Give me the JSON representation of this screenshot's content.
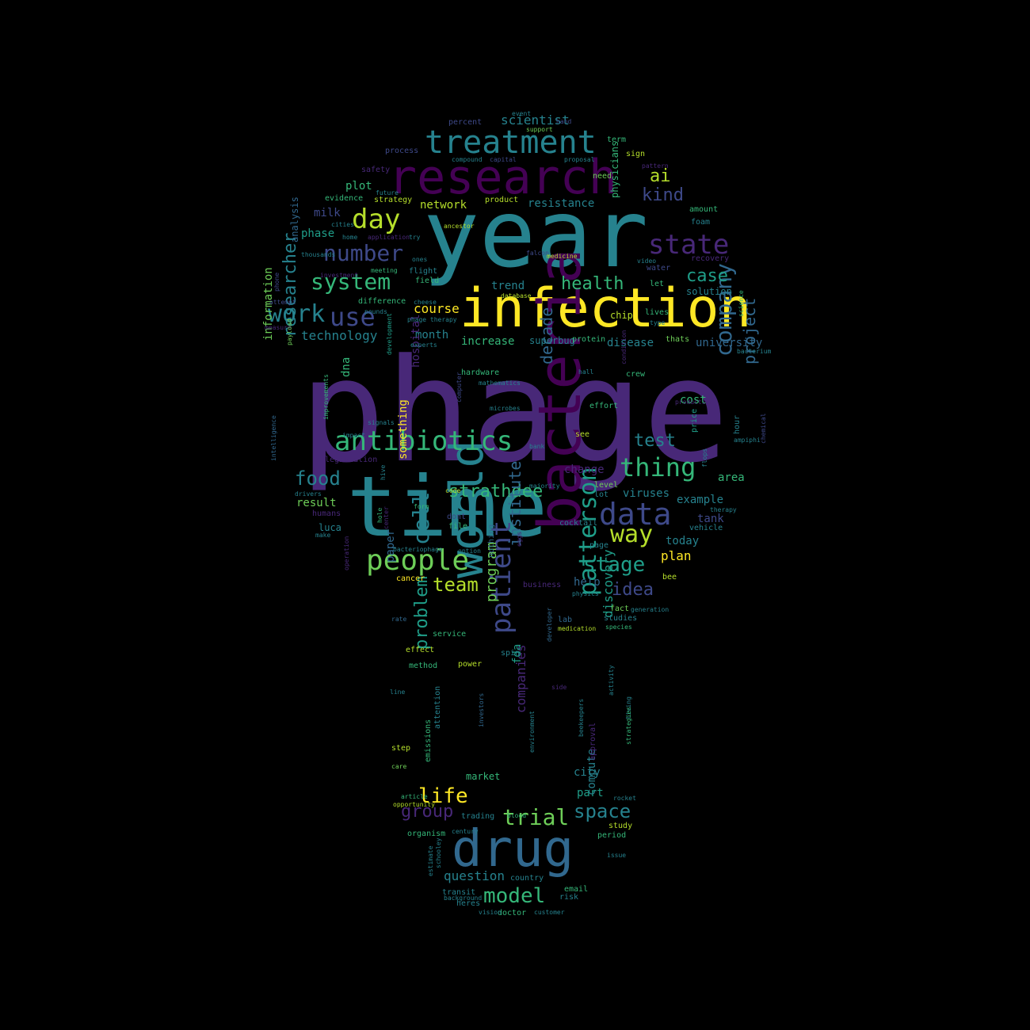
{
  "palette": {
    "background": "#000000",
    "viridis": [
      "#440154",
      "#482878",
      "#3e4989",
      "#31688e",
      "#26828e",
      "#1f9e89",
      "#35b779",
      "#6ece58",
      "#b5de2b",
      "#fde725"
    ]
  },
  "words": [
    {
      "text": "phage",
      "color": "#482878"
    },
    {
      "text": "time",
      "color": "#26828e"
    },
    {
      "text": "year",
      "color": "#26828e"
    },
    {
      "text": "infection",
      "color": "#fde725"
    },
    {
      "text": "research",
      "color": "#440154"
    },
    {
      "text": "bacteria",
      "color": "#440154"
    },
    {
      "text": "drug",
      "color": "#31688e"
    },
    {
      "text": "world",
      "color": "#26828e"
    },
    {
      "text": "treatment",
      "color": "#26828e"
    },
    {
      "text": "antibiotics",
      "color": "#35b779"
    },
    {
      "text": "people",
      "color": "#6ece58"
    },
    {
      "text": "patient",
      "color": "#3e4989"
    },
    {
      "text": "data",
      "color": "#3e4989"
    },
    {
      "text": "thing",
      "color": "#35b779"
    },
    {
      "text": "patterson",
      "color": "#1f9e89"
    },
    {
      "text": "company",
      "color": "#31688e"
    },
    {
      "text": "number",
      "color": "#3e4989"
    },
    {
      "text": "system",
      "color": "#35b779"
    },
    {
      "text": "state",
      "color": "#482878"
    },
    {
      "text": "day",
      "color": "#b5de2b"
    },
    {
      "text": "use",
      "color": "#3e4989"
    },
    {
      "text": "work",
      "color": "#26828e"
    },
    {
      "text": "cell",
      "color": "#26828e"
    },
    {
      "text": "way",
      "color": "#b5de2b"
    },
    {
      "text": "stage",
      "color": "#1f9e89"
    },
    {
      "text": "model",
      "color": "#35b779"
    },
    {
      "text": "trial",
      "color": "#6ece58"
    },
    {
      "text": "life",
      "color": "#fde725"
    },
    {
      "text": "team",
      "color": "#b5de2b"
    },
    {
      "text": "space",
      "color": "#26828e"
    },
    {
      "text": "strathdee",
      "color": "#35b779"
    },
    {
      "text": "problem",
      "color": "#1f9e89"
    },
    {
      "text": "test",
      "color": "#26828e"
    },
    {
      "text": "food",
      "color": "#26828e"
    },
    {
      "text": "researcher",
      "color": "#26828e"
    },
    {
      "text": "case",
      "color": "#1f9e89"
    },
    {
      "text": "kind",
      "color": "#3e4989"
    },
    {
      "text": "ai",
      "color": "#b5de2b"
    },
    {
      "text": "idea",
      "color": "#3e4989"
    },
    {
      "text": "group",
      "color": "#482878"
    },
    {
      "text": "health",
      "color": "#35b779"
    },
    {
      "text": "project",
      "color": "#31688e"
    },
    {
      "text": "institute",
      "color": "#31688e"
    },
    {
      "text": "program",
      "color": "#6ece58"
    },
    {
      "text": "decade",
      "color": "#31688e"
    },
    {
      "text": "question",
      "color": "#26828e"
    },
    {
      "text": "discovery",
      "color": "#1f9e89"
    },
    {
      "text": "companies",
      "color": "#482878"
    },
    {
      "text": "technology",
      "color": "#26828e"
    },
    {
      "text": "scientist",
      "color": "#26828e"
    },
    {
      "text": "resistance",
      "color": "#26828e"
    },
    {
      "text": "plot",
      "color": "#35b779"
    },
    {
      "text": "phase",
      "color": "#1f9e89"
    },
    {
      "text": "milk",
      "color": "#3e4989"
    },
    {
      "text": "course",
      "color": "#fde725"
    },
    {
      "text": "month",
      "color": "#26828e"
    },
    {
      "text": "increase",
      "color": "#35b779"
    },
    {
      "text": "university",
      "color": "#31688e"
    },
    {
      "text": "disease",
      "color": "#26828e"
    },
    {
      "text": "trend",
      "color": "#26828e"
    },
    {
      "text": "network",
      "color": "#b5de2b"
    },
    {
      "text": "information",
      "color": "#6ece58"
    },
    {
      "text": "analysis",
      "color": "#31688e"
    },
    {
      "text": "physicians",
      "color": "#35b779"
    },
    {
      "text": "cost",
      "color": "#35b779"
    },
    {
      "text": "example",
      "color": "#26828e"
    },
    {
      "text": "area",
      "color": "#35b779"
    },
    {
      "text": "today",
      "color": "#26828e"
    },
    {
      "text": "plan",
      "color": "#fde725"
    },
    {
      "text": "help",
      "color": "#31688e"
    },
    {
      "text": "result",
      "color": "#6ece58"
    },
    {
      "text": "luca",
      "color": "#26828e"
    },
    {
      "text": "hospital",
      "color": "#482878"
    },
    {
      "text": "dna",
      "color": "#35b779"
    },
    {
      "text": "viruses",
      "color": "#26828e"
    },
    {
      "text": "tank",
      "color": "#3e4989"
    },
    {
      "text": "change",
      "color": "#482878"
    },
    {
      "text": "city",
      "color": "#26828e"
    },
    {
      "text": "part",
      "color": "#1f9e89"
    },
    {
      "text": "market",
      "color": "#35b779"
    },
    {
      "text": "compute",
      "color": "#26828e"
    },
    {
      "text": "paper",
      "color": "#31688e"
    },
    {
      "text": "fda",
      "color": "#1f9e89"
    },
    {
      "text": "something",
      "color": "#fde725"
    },
    {
      "text": "superbug",
      "color": "#26828e"
    },
    {
      "text": "protein",
      "color": "#35b779"
    },
    {
      "text": "chip",
      "color": "#b5de2b"
    },
    {
      "text": "foam",
      "color": "#26828e"
    },
    {
      "text": "water",
      "color": "#3e4989"
    },
    {
      "text": "solution",
      "color": "#26828e"
    },
    {
      "text": "recovery",
      "color": "#482878"
    },
    {
      "text": "amount",
      "color": "#35b779"
    },
    {
      "text": "crew",
      "color": "#35b779"
    },
    {
      "text": "thats",
      "color": "#6ece58"
    },
    {
      "text": "lives",
      "color": "#35b779"
    },
    {
      "text": "let",
      "color": "#35b779"
    },
    {
      "text": "studies",
      "color": "#26828e"
    },
    {
      "text": "lab",
      "color": "#31688e"
    },
    {
      "text": "fact",
      "color": "#6ece58"
    },
    {
      "text": "species",
      "color": "#35b779"
    },
    {
      "text": "bee",
      "color": "#b5de2b"
    },
    {
      "text": "service",
      "color": "#35b779"
    },
    {
      "text": "effect",
      "color": "#b5de2b"
    },
    {
      "text": "method",
      "color": "#35b779"
    },
    {
      "text": "power",
      "color": "#b5de2b"
    },
    {
      "text": "spin",
      "color": "#26828e"
    },
    {
      "text": "rate",
      "color": "#31688e"
    },
    {
      "text": "cancer",
      "color": "#fde725"
    },
    {
      "text": "business",
      "color": "#482878"
    },
    {
      "text": "nothing",
      "color": "#31688e"
    },
    {
      "text": "developer",
      "color": "#31688e"
    },
    {
      "text": "page",
      "color": "#26828e"
    },
    {
      "text": "cocktail",
      "color": "#26828e"
    },
    {
      "text": "level",
      "color": "#6ece58"
    },
    {
      "text": "lot",
      "color": "#26828e"
    },
    {
      "text": "vehicle",
      "color": "#26828e"
    },
    {
      "text": "price",
      "color": "#1f9e89"
    },
    {
      "text": "hour",
      "color": "#26828e"
    },
    {
      "text": "file",
      "color": "#35b779"
    },
    {
      "text": "dont",
      "color": "#3e4989"
    },
    {
      "text": "code",
      "color": "#b5de2b"
    },
    {
      "text": "form",
      "color": "#35b779"
    },
    {
      "text": "humans",
      "color": "#482878"
    },
    {
      "text": "legislation",
      "color": "#482878"
    },
    {
      "text": "make",
      "color": "#26828e"
    },
    {
      "text": "hardware",
      "color": "#35b779"
    },
    {
      "text": "development",
      "color": "#1f9e89"
    },
    {
      "text": "computer",
      "color": "#3e4989"
    },
    {
      "text": "see",
      "color": "#b5de2b"
    },
    {
      "text": "bank",
      "color": "#26828e"
    },
    {
      "text": "effort",
      "color": "#35b779"
    },
    {
      "text": "condition",
      "color": "#482878"
    },
    {
      "text": "hall",
      "color": "#26828e"
    },
    {
      "text": "evidence",
      "color": "#35b779"
    },
    {
      "text": "safety",
      "color": "#482878"
    },
    {
      "text": "process",
      "color": "#3e4989"
    },
    {
      "text": "strategy",
      "color": "#b5de2b"
    },
    {
      "text": "product",
      "color": "#b5de2b"
    },
    {
      "text": "need",
      "color": "#6ece58"
    },
    {
      "text": "term",
      "color": "#35b779"
    },
    {
      "text": "sign",
      "color": "#b5de2b"
    },
    {
      "text": "percent",
      "color": "#3e4989"
    },
    {
      "text": "hand",
      "color": "#3e4989"
    },
    {
      "text": "home",
      "color": "#26828e"
    },
    {
      "text": "try",
      "color": "#26828e"
    },
    {
      "text": "ones",
      "color": "#26828e"
    },
    {
      "text": "meeting",
      "color": "#35b779"
    },
    {
      "text": "flight",
      "color": "#26828e"
    },
    {
      "text": "field",
      "color": "#35b779"
    },
    {
      "text": "difference",
      "color": "#35b779"
    },
    {
      "text": "pounds",
      "color": "#26828e"
    },
    {
      "text": "phage therapy",
      "color": "#26828e"
    },
    {
      "text": "falcon",
      "color": "#3e4989"
    },
    {
      "text": "measure",
      "color": "#482878"
    },
    {
      "text": "attention",
      "color": "#26828e"
    },
    {
      "text": "emissions",
      "color": "#35b779"
    },
    {
      "text": "investors",
      "color": "#31688e"
    },
    {
      "text": "environment",
      "color": "#26828e"
    },
    {
      "text": "beekeepers",
      "color": "#26828e"
    },
    {
      "text": "living",
      "color": "#26828e"
    },
    {
      "text": "strategies",
      "color": "#35b779"
    },
    {
      "text": "approval",
      "color": "#482878"
    },
    {
      "text": "step",
      "color": "#b5de2b"
    },
    {
      "text": "care",
      "color": "#6ece58"
    },
    {
      "text": "line",
      "color": "#26828e"
    },
    {
      "text": "trading",
      "color": "#26828e"
    },
    {
      "text": "organism",
      "color": "#35b779"
    },
    {
      "text": "study",
      "color": "#b5de2b"
    },
    {
      "text": "period",
      "color": "#35b779"
    },
    {
      "text": "country",
      "color": "#26828e"
    },
    {
      "text": "estimate",
      "color": "#26828e"
    },
    {
      "text": "schooley",
      "color": "#26828e"
    },
    {
      "text": "email",
      "color": "#35b779"
    },
    {
      "text": "transit",
      "color": "#26828e"
    },
    {
      "text": "risk",
      "color": "#26828e"
    },
    {
      "text": "heres",
      "color": "#26828e"
    },
    {
      "text": "doctor",
      "color": "#35b779"
    },
    {
      "text": "ampiphi",
      "color": "#26828e"
    },
    {
      "text": "chemical",
      "color": "#3e4989"
    },
    {
      "text": "science",
      "color": "#35b779"
    },
    {
      "text": "bacterium",
      "color": "#26828e"
    },
    {
      "text": "intelligence",
      "color": "#31688e"
    },
    {
      "text": "phone",
      "color": "#3e4989"
    },
    {
      "text": "attempt",
      "color": "#3e4989"
    },
    {
      "text": "improvements",
      "color": "#35b779"
    },
    {
      "text": "operation",
      "color": "#482878"
    },
    {
      "text": "hive",
      "color": "#26828e"
    },
    {
      "text": "hole",
      "color": "#35b779"
    },
    {
      "text": "bacteriophage",
      "color": "#26828e"
    },
    {
      "text": "option",
      "color": "#26828e"
    },
    {
      "text": "center",
      "color": "#482878"
    },
    {
      "text": "background",
      "color": "#26828e"
    },
    {
      "text": "side",
      "color": "#482878"
    },
    {
      "text": "flops",
      "color": "#26828e"
    },
    {
      "text": "compound",
      "color": "#26828e"
    },
    {
      "text": "capital",
      "color": "#3e4989"
    },
    {
      "text": "investment",
      "color": "#482878"
    },
    {
      "text": "thousands",
      "color": "#26828e"
    },
    {
      "text": "application",
      "color": "#482878"
    },
    {
      "text": "cities",
      "color": "#26828e"
    },
    {
      "text": "video",
      "color": "#26828e"
    },
    {
      "text": "type",
      "color": "#26828e"
    },
    {
      "text": "medicine",
      "color": "#b5de2b"
    },
    {
      "text": "proposal",
      "color": "#26828e"
    },
    {
      "text": "pattern",
      "color": "#482878"
    },
    {
      "text": "event",
      "color": "#26828e"
    },
    {
      "text": "support",
      "color": "#6ece58"
    },
    {
      "text": "future",
      "color": "#26828e"
    },
    {
      "text": "ancestor",
      "color": "#b5de2b"
    },
    {
      "text": "database",
      "color": "#b5de2b"
    },
    {
      "text": "cheese",
      "color": "#26828e"
    },
    {
      "text": "mathematics",
      "color": "#26828e"
    },
    {
      "text": "microbes",
      "color": "#26828e"
    },
    {
      "text": "experts",
      "color": "#26828e"
    },
    {
      "text": "signals",
      "color": "#26828e"
    },
    {
      "text": "production",
      "color": "#482878"
    },
    {
      "text": "payload",
      "color": "#6ece58"
    },
    {
      "text": "impact",
      "color": "#26828e"
    },
    {
      "text": "drivers",
      "color": "#26828e"
    },
    {
      "text": "blood",
      "color": "#35b779"
    },
    {
      "text": "opportunity",
      "color": "#b5de2b"
    },
    {
      "text": "article",
      "color": "#35b779"
    },
    {
      "text": "majority",
      "color": "#26828e"
    },
    {
      "text": "rocket",
      "color": "#26828e"
    },
    {
      "text": "eggs",
      "color": "#482878"
    },
    {
      "text": "therapy",
      "color": "#26828e"
    },
    {
      "text": "issue",
      "color": "#26828e"
    },
    {
      "text": "activity",
      "color": "#26828e"
    },
    {
      "text": "medication",
      "color": "#b5de2b"
    },
    {
      "text": "physics",
      "color": "#26828e"
    },
    {
      "text": "generation",
      "color": "#26828e"
    },
    {
      "text": "century",
      "color": "#26828e"
    },
    {
      "text": "customer",
      "color": "#26828e"
    },
    {
      "text": "vision",
      "color": "#26828e"
    },
    {
      "text": "fire",
      "color": "#26828e"
    },
    {
      "text": "place",
      "color": "#26828e"
    },
    {
      "text": "government",
      "color": "#35b779"
    }
  ]
}
